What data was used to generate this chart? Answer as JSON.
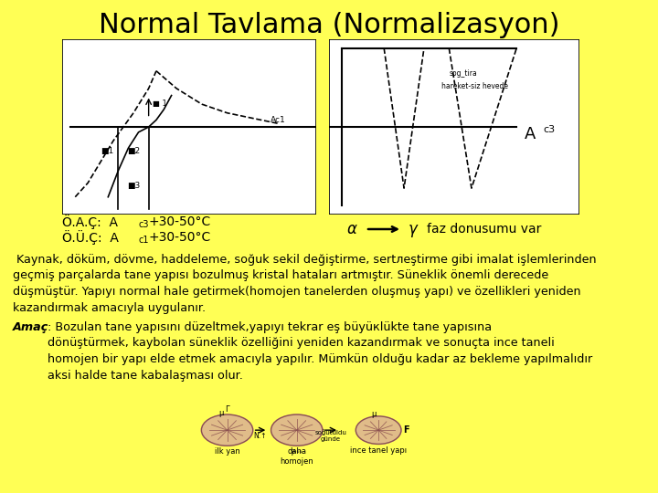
{
  "background_color": "#FFFF55",
  "title": "Normal Tavlama (Normalizasyon)",
  "title_fontsize": 22,
  "label_oac": "Ö.A.Ç:  A",
  "label_oac_sub": "c3",
  "label_oac_rest": "+30-50°C",
  "label_ouc": "Ö.Ü.Ç:  A",
  "label_ouc_sub": "c1",
  "label_ouc_rest": "+30-50°C",
  "arrow_text_left": "α",
  "arrow_text_right": "γ",
  "arrow_label": "faz donusumu var",
  "para1": " Kaynak, döküm, dövme, haddeleme, soğuk sekil değiştirme, sertлеştirme gibi imalat işlemlerinden\ngeçmiş parçalarda tane yapısı bozulmuş kristal hataları artmıştır. Süneklik önemli derecede\ndüşmüştür. Yapıyı normal hale getirmek(homojen tanelerden oluşmuş yapı) ve özellikleri yeniden\nkazandırmak amacıyla uygulanır.",
  "amac_label": "Amaç",
  "para2": ": Bozulan tane yapısını düzeltmek,yapıyı tekrar eş büyüкlükte tane yapısına\ndönüştürmek, kaybolan süneklik özelliğini yeniden kazandırmak ve sonuçta ince taneli\nhomojen bir yapı elde etmek amacıyla yapılır. Mümkün olduğu kadar az bekleme yapılmalıdır\naksi halde tane kabalaşması olur.",
  "text_fontsize": 9.5,
  "text_color": "#000000",
  "ac3_label": "A",
  "ac3_sub": "c3",
  "hareket_text": "hareket-siz hevede",
  "sog_text": "sog_tira"
}
